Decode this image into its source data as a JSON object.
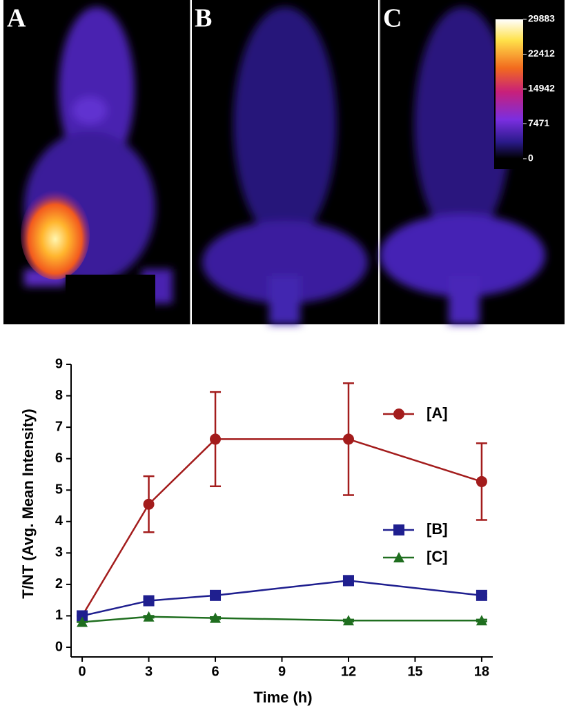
{
  "panels": {
    "labels": [
      "A",
      "B",
      "C"
    ]
  },
  "colorbar": {
    "lim": [
      0,
      29883
    ],
    "ticks": [
      29883,
      22412,
      14942,
      7471,
      0
    ]
  },
  "chart_data": {
    "type": "line",
    "x": [
      0,
      3,
      6,
      12,
      18
    ],
    "xlim": [
      -0.5,
      18.5
    ],
    "xticks": [
      0,
      3,
      6,
      9,
      12,
      15,
      18
    ],
    "ylim": [
      0,
      9
    ],
    "yticks": [
      0,
      1,
      2,
      3,
      4,
      5,
      6,
      7,
      8,
      9
    ],
    "xlabel": "Time (h)",
    "ylabel": "T/NT (Avg. Mean Intensity)",
    "legend": "right",
    "series": [
      {
        "name": "[A]",
        "color": "#a31c1c",
        "marker": "circle",
        "values": [
          1,
          4.55,
          6.62,
          6.62,
          5.27
        ],
        "errors": [
          0,
          0.89,
          1.5,
          1.78,
          1.22
        ]
      },
      {
        "name": "[B]",
        "color": "#1f1f8f",
        "marker": "square",
        "values": [
          1,
          1.48,
          1.65,
          2.12,
          1.65
        ],
        "errors": [
          0,
          0.05,
          0.05,
          0.15,
          0.05
        ]
      },
      {
        "name": "[C]",
        "color": "#1f6e1f",
        "marker": "triangle",
        "values": [
          0.8,
          0.97,
          0.93,
          0.85,
          0.85
        ],
        "errors": [
          0,
          0.03,
          0.03,
          0.03,
          0.03
        ]
      }
    ]
  }
}
